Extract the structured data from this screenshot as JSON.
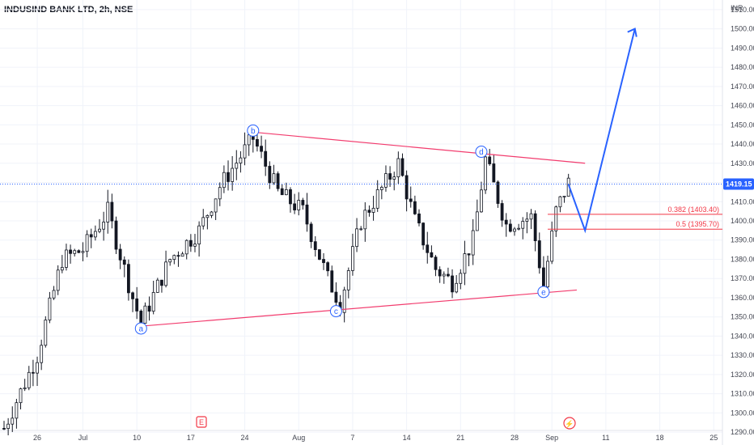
{
  "header": {
    "symbol_title": "INDUSIND BANK LTD, 2h, NSE"
  },
  "axis": {
    "currency": "INR",
    "current_price": "1419.15"
  },
  "colors": {
    "candle": "#131722",
    "trendline": "#f23c6e",
    "wave": "#2962ff",
    "fib": "#f23645",
    "price_line": "#2962ff",
    "grid": "#f0f3fa",
    "earnings_icon": "#f23645"
  },
  "markers": {
    "earnings": "E",
    "dividend": "⚡"
  },
  "chart_data": {
    "type": "candlestick",
    "title": "INDUSIND BANK LTD, 2h, NSE",
    "ylim": [
      1285,
      1515
    ],
    "y_ticks": [
      1290,
      1300,
      1310,
      1320,
      1330,
      1340,
      1350,
      1360,
      1370,
      1380,
      1390,
      1400,
      1410,
      1420,
      1430,
      1440,
      1450,
      1460,
      1470,
      1480,
      1490,
      1500,
      1510
    ],
    "x_ticks": [
      "26",
      "Jul",
      "10",
      "17",
      "24",
      "Aug",
      "7",
      "14",
      "21",
      "28",
      "Sep",
      "11",
      "18",
      "25"
    ],
    "x_tick_index": [
      8,
      19,
      32,
      45,
      58,
      71,
      84,
      97,
      110,
      123,
      132,
      145,
      158,
      171
    ],
    "waves": [
      {
        "label": "a",
        "x": 33,
        "y": 1344
      },
      {
        "label": "b",
        "x": 60,
        "y": 1447
      },
      {
        "label": "c",
        "x": 80,
        "y": 1353
      },
      {
        "label": "d",
        "x": 115,
        "y": 1436
      },
      {
        "label": "e",
        "x": 130,
        "y": 1363
      }
    ],
    "trendlines": [
      {
        "from": [
          32,
          1345
        ],
        "to": [
          138,
          1364
        ]
      },
      {
        "from": [
          61,
          1446
        ],
        "to": [
          140,
          1430
        ]
      }
    ],
    "fib_levels": [
      {
        "label": "0.382 (1403.40)",
        "value": 1403.4
      },
      {
        "label": "0.5 (1395.70)",
        "value": 1395.7
      }
    ],
    "projection": [
      [
        136,
        1419
      ],
      [
        140,
        1395
      ],
      [
        152,
        1500
      ]
    ],
    "candles": []
  }
}
